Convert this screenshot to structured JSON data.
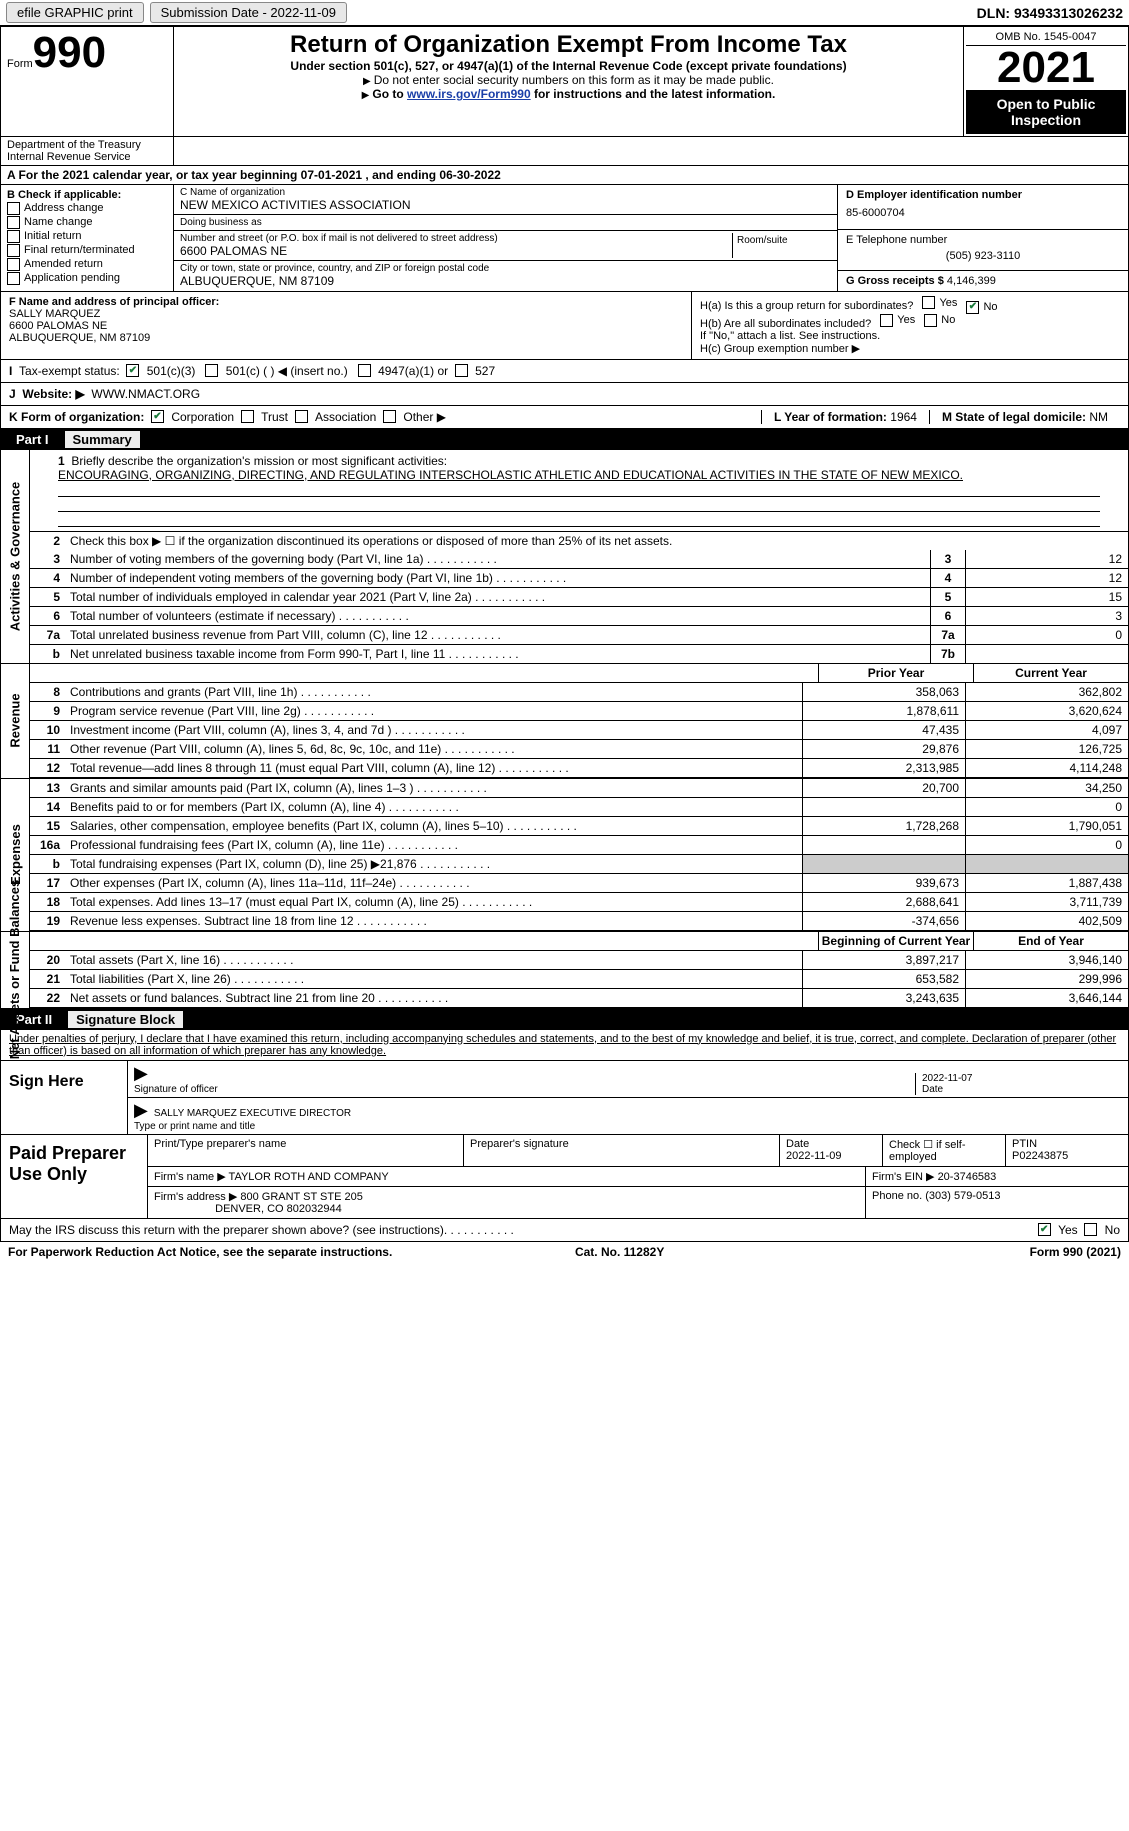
{
  "topbar": {
    "efile": "efile GRAPHIC print",
    "sub_label": "Submission Date - ",
    "sub_date": "2022-11-09",
    "dln_label": "DLN: ",
    "dln": "93493313026232"
  },
  "header": {
    "form_prefix": "Form",
    "form_num": "990",
    "dept": "Department of the Treasury Internal Revenue Service",
    "title": "Return of Organization Exempt From Income Tax",
    "subtitle": "Under section 501(c), 527, or 4947(a)(1) of the Internal Revenue Code (except private foundations)",
    "note1": "Do not enter social security numbers on this form as it may be made public.",
    "note2_a": "Go to ",
    "note2_link": "www.irs.gov/Form990",
    "note2_b": " for instructions and the latest information.",
    "omb": "OMB No. 1545-0047",
    "year": "2021",
    "open_public": "Open to Public Inspection"
  },
  "period": {
    "label_a": "A For the 2021 calendar year, or tax year beginning ",
    "begin": "07-01-2021",
    "label_b": " , and ending ",
    "end": "06-30-2022"
  },
  "section_b": {
    "header": "B Check if applicable:",
    "opts": [
      "Address change",
      "Name change",
      "Initial return",
      "Final return/terminated",
      "Amended return",
      "Application pending"
    ]
  },
  "section_c": {
    "name_label": "C Name of organization",
    "name": "NEW MEXICO ACTIVITIES ASSOCIATION",
    "dba_label": "Doing business as",
    "dba": "",
    "street_label": "Number and street (or P.O. box if mail is not delivered to street address)",
    "room_label": "Room/suite",
    "street": "6600 PALOMAS NE",
    "city_label": "City or town, state or province, country, and ZIP or foreign postal code",
    "city": "ALBUQUERQUE, NM  87109"
  },
  "section_d": {
    "ein_label": "D Employer identification number",
    "ein": "85-6000704",
    "phone_label": "E Telephone number",
    "phone": "(505) 923-3110",
    "gross_label": "G Gross receipts $ ",
    "gross": "4,146,399"
  },
  "section_f": {
    "label": "F Name and address of principal officer:",
    "name": "SALLY MARQUEZ",
    "line1": "6600 PALOMAS NE",
    "line2": "ALBUQUERQUE, NM  87109"
  },
  "section_h": {
    "ha": "H(a)  Is this a group return for subordinates?",
    "hb": "H(b)  Are all subordinates included?",
    "hb_note": "If \"No,\" attach a list. See instructions.",
    "hc": "H(c)  Group exemption number ▶",
    "yes": "Yes",
    "no": "No"
  },
  "section_i": {
    "label": "Tax-exempt status:",
    "o1": "501(c)(3)",
    "o2": "501(c) (  ) ◀ (insert no.)",
    "o3": "4947(a)(1) or",
    "o4": "527"
  },
  "section_j": {
    "label": "Website: ▶",
    "val": "WWW.NMACT.ORG"
  },
  "section_k": {
    "label": "K Form of organization:",
    "o1": "Corporation",
    "o2": "Trust",
    "o3": "Association",
    "o4": "Other ▶",
    "l_label": "L Year of formation: ",
    "l_val": "1964",
    "m_label": "M State of legal domicile: ",
    "m_val": "NM"
  },
  "part1": {
    "label": "Part I",
    "title": "Summary"
  },
  "summary": {
    "side1": "Activities & Governance",
    "side2": "Revenue",
    "side3": "Expenses",
    "side4": "Net Assets or Fund Balances",
    "line1_label": "Briefly describe the organization's mission or most significant activities:",
    "mission": "ENCOURAGING, ORGANIZING, DIRECTING, AND REGULATING INTERSCHOLASTIC ATHLETIC AND EDUCATIONAL ACTIVITIES IN THE STATE OF NEW MEXICO.",
    "line2": "Check this box ▶ ☐ if the organization discontinued its operations or disposed of more than 25% of its net assets.",
    "rows_a": [
      {
        "n": "3",
        "d": "Number of voting members of the governing body (Part VI, line 1a)",
        "b": "3",
        "v": "12"
      },
      {
        "n": "4",
        "d": "Number of independent voting members of the governing body (Part VI, line 1b)",
        "b": "4",
        "v": "12"
      },
      {
        "n": "5",
        "d": "Total number of individuals employed in calendar year 2021 (Part V, line 2a)",
        "b": "5",
        "v": "15"
      },
      {
        "n": "6",
        "d": "Total number of volunteers (estimate if necessary)",
        "b": "6",
        "v": "3"
      },
      {
        "n": "7a",
        "d": "Total unrelated business revenue from Part VIII, column (C), line 12",
        "b": "7a",
        "v": "0"
      },
      {
        "n": "b",
        "d": "Net unrelated business taxable income from Form 990-T, Part I, line 11",
        "b": "7b",
        "v": ""
      }
    ],
    "col_prior": "Prior Year",
    "col_current": "Current Year",
    "col_boy": "Beginning of Current Year",
    "col_eoy": "End of Year",
    "rows_r": [
      {
        "n": "8",
        "d": "Contributions and grants (Part VIII, line 1h)",
        "p": "358,063",
        "c": "362,802"
      },
      {
        "n": "9",
        "d": "Program service revenue (Part VIII, line 2g)",
        "p": "1,878,611",
        "c": "3,620,624"
      },
      {
        "n": "10",
        "d": "Investment income (Part VIII, column (A), lines 3, 4, and 7d )",
        "p": "47,435",
        "c": "4,097"
      },
      {
        "n": "11",
        "d": "Other revenue (Part VIII, column (A), lines 5, 6d, 8c, 9c, 10c, and 11e)",
        "p": "29,876",
        "c": "126,725"
      },
      {
        "n": "12",
        "d": "Total revenue—add lines 8 through 11 (must equal Part VIII, column (A), line 12)",
        "p": "2,313,985",
        "c": "4,114,248"
      }
    ],
    "rows_e": [
      {
        "n": "13",
        "d": "Grants and similar amounts paid (Part IX, column (A), lines 1–3 )",
        "p": "20,700",
        "c": "34,250"
      },
      {
        "n": "14",
        "d": "Benefits paid to or for members (Part IX, column (A), line 4)",
        "p": "",
        "c": "0"
      },
      {
        "n": "15",
        "d": "Salaries, other compensation, employee benefits (Part IX, column (A), lines 5–10)",
        "p": "1,728,268",
        "c": "1,790,051"
      },
      {
        "n": "16a",
        "d": "Professional fundraising fees (Part IX, column (A), line 11e)",
        "p": "",
        "c": "0"
      },
      {
        "n": "b",
        "d": "Total fundraising expenses (Part IX, column (D), line 25) ▶21,876",
        "p": "shaded",
        "c": "shaded"
      },
      {
        "n": "17",
        "d": "Other expenses (Part IX, column (A), lines 11a–11d, 11f–24e)",
        "p": "939,673",
        "c": "1,887,438"
      },
      {
        "n": "18",
        "d": "Total expenses. Add lines 13–17 (must equal Part IX, column (A), line 25)",
        "p": "2,688,641",
        "c": "3,711,739"
      },
      {
        "n": "19",
        "d": "Revenue less expenses. Subtract line 18 from line 12",
        "p": "-374,656",
        "c": "402,509"
      }
    ],
    "rows_n": [
      {
        "n": "20",
        "d": "Total assets (Part X, line 16)",
        "p": "3,897,217",
        "c": "3,946,140"
      },
      {
        "n": "21",
        "d": "Total liabilities (Part X, line 26)",
        "p": "653,582",
        "c": "299,996"
      },
      {
        "n": "22",
        "d": "Net assets or fund balances. Subtract line 21 from line 20",
        "p": "3,243,635",
        "c": "3,646,144"
      }
    ]
  },
  "part2": {
    "label": "Part II",
    "title": "Signature Block"
  },
  "sig": {
    "decl": "Under penalties of perjury, I declare that I have examined this return, including accompanying schedules and statements, and to the best of my knowledge and belief, it is true, correct, and complete. Declaration of preparer (other than officer) is based on all information of which preparer has any knowledge.",
    "sign_here": "Sign Here",
    "sig_officer": "Signature of officer",
    "sig_date": "2022-11-07",
    "date_label": "Date",
    "name_title": "SALLY MARQUEZ  EXECUTIVE DIRECTOR",
    "type_label": "Type or print name and title",
    "paid": "Paid Preparer Use Only",
    "prep_name_label": "Print/Type preparer's name",
    "prep_sig_label": "Preparer's signature",
    "prep_date_label": "Date",
    "prep_date": "2022-11-09",
    "check_self": "Check ☐ if self-employed",
    "ptin_label": "PTIN",
    "ptin": "P02243875",
    "firm_name_label": "Firm's name  ▶",
    "firm_name": "TAYLOR ROTH AND COMPANY",
    "firm_ein_label": "Firm's EIN ▶",
    "firm_ein": "20-3746583",
    "firm_addr_label": "Firm's address ▶",
    "firm_addr1": "800 GRANT ST STE 205",
    "firm_addr2": "DENVER, CO  802032944",
    "firm_phone_label": "Phone no.",
    "firm_phone": "(303) 579-0513"
  },
  "bottom": {
    "q": "May the IRS discuss this return with the preparer shown above? (see instructions)",
    "yes": "Yes",
    "no": "No"
  },
  "footer": {
    "left": "For Paperwork Reduction Act Notice, see the separate instructions.",
    "center": "Cat. No. 11282Y",
    "right": "Form 990 (2021)"
  }
}
